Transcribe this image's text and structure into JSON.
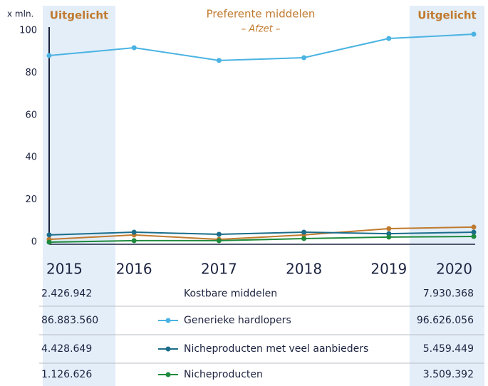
{
  "chart_data": {
    "type": "line",
    "title": "Preferente middelen",
    "subtitle": "– Afzet –",
    "y_label": "x mln.",
    "categories": [
      "2015",
      "2016",
      "2017",
      "2018",
      "2019",
      "2020"
    ],
    "annotations": [
      {
        "text": "Uitgelicht",
        "category": "2015"
      },
      {
        "text": "Uitgelicht",
        "category": "2020"
      }
    ],
    "highlight_color": "#e3eef9",
    "ylim": [
      0,
      100
    ],
    "yticks": [
      0,
      20,
      40,
      60,
      80,
      100
    ],
    "grid": false,
    "series": [
      {
        "name": "Kostbare middelen",
        "color": "#c07a2e",
        "values": [
          1.3,
          3.4,
          1.3,
          3.4,
          6.4,
          7.1
        ]
      },
      {
        "name": "Generieke hardlopers",
        "color": "#4ab3e2",
        "values": [
          88.2,
          91.9,
          85.9,
          87.2,
          96.3,
          98.3
        ]
      },
      {
        "name": "Nicheproducten met veel aanbieders",
        "color": "#1a6d8a",
        "values": [
          3.4,
          4.7,
          3.7,
          4.7,
          4.0,
          4.7
        ]
      },
      {
        "name": "Nicheproducten",
        "color": "#1e8a3c",
        "values": [
          0,
          0.7,
          0.7,
          1.7,
          2.4,
          2.7
        ]
      }
    ],
    "table": {
      "rows": [
        [
          "2.426.942",
          "7.930.368"
        ],
        [
          "86.883.560",
          "96.626.056"
        ],
        [
          "4.428.649",
          "5.459.449"
        ],
        [
          "1.126.626",
          "3.509.392"
        ]
      ]
    }
  }
}
